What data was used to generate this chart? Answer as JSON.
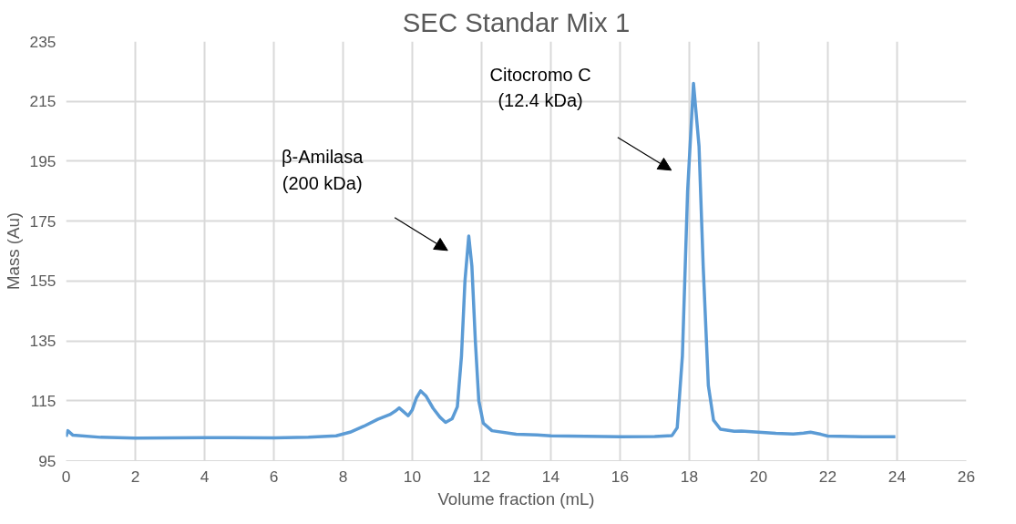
{
  "chart_data": {
    "type": "line",
    "title": "SEC Standar Mix 1",
    "xlabel": "Volume fraction (mL)",
    "ylabel": "Mass (Au)",
    "series": [
      {
        "color": "#5b9bd5",
        "x": [
          0,
          0.05,
          0.2,
          1,
          2,
          4,
          6,
          7,
          7.8,
          8.2,
          8.6,
          9,
          9.35,
          9.5,
          9.62,
          9.75,
          9.88,
          10,
          10.12,
          10.24,
          10.4,
          10.6,
          10.8,
          10.96,
          11.15,
          11.3,
          11.42,
          11.52,
          11.63,
          11.72,
          11.82,
          11.92,
          12.05,
          12.3,
          13,
          13.6,
          14,
          16,
          17,
          17.5,
          17.65,
          17.8,
          17.95,
          18.12,
          18.28,
          18.4,
          18.55,
          18.7,
          18.9,
          19.3,
          19.5,
          20,
          20.5,
          21,
          21.3,
          21.5,
          21.8,
          22,
          23,
          23.95
        ],
        "values": [
          103,
          105,
          103.5,
          102.8,
          102.5,
          102.7,
          102.6,
          102.8,
          103.3,
          104.5,
          106.5,
          108.8,
          110.4,
          111.5,
          112.6,
          111.3,
          110,
          112,
          116,
          118.3,
          116.5,
          112.5,
          109.5,
          107.8,
          109,
          113,
          130,
          155,
          170,
          160,
          135,
          115,
          107.5,
          105,
          103.8,
          103.6,
          103.3,
          103,
          103.1,
          103.4,
          106,
          130,
          185,
          221,
          200,
          160,
          120,
          108.5,
          105.5,
          104.8,
          104.9,
          104.5,
          104.1,
          103.9,
          104.2,
          104.5,
          103.8,
          103.2,
          103,
          103
        ]
      }
    ],
    "xlim": [
      0,
      26
    ],
    "xticks": [
      0,
      2,
      4,
      6,
      8,
      10,
      12,
      14,
      16,
      18,
      20,
      22,
      24,
      26
    ],
    "ylim": [
      95,
      235
    ],
    "yticks": [
      95,
      115,
      135,
      155,
      175,
      195,
      215,
      235
    ],
    "grid": true,
    "line_style": "solid",
    "marker": "none",
    "annotations": [
      "β-Amilasa\n(200 kDa)",
      "Citocromo C\n(12.4 kDa)"
    ]
  }
}
